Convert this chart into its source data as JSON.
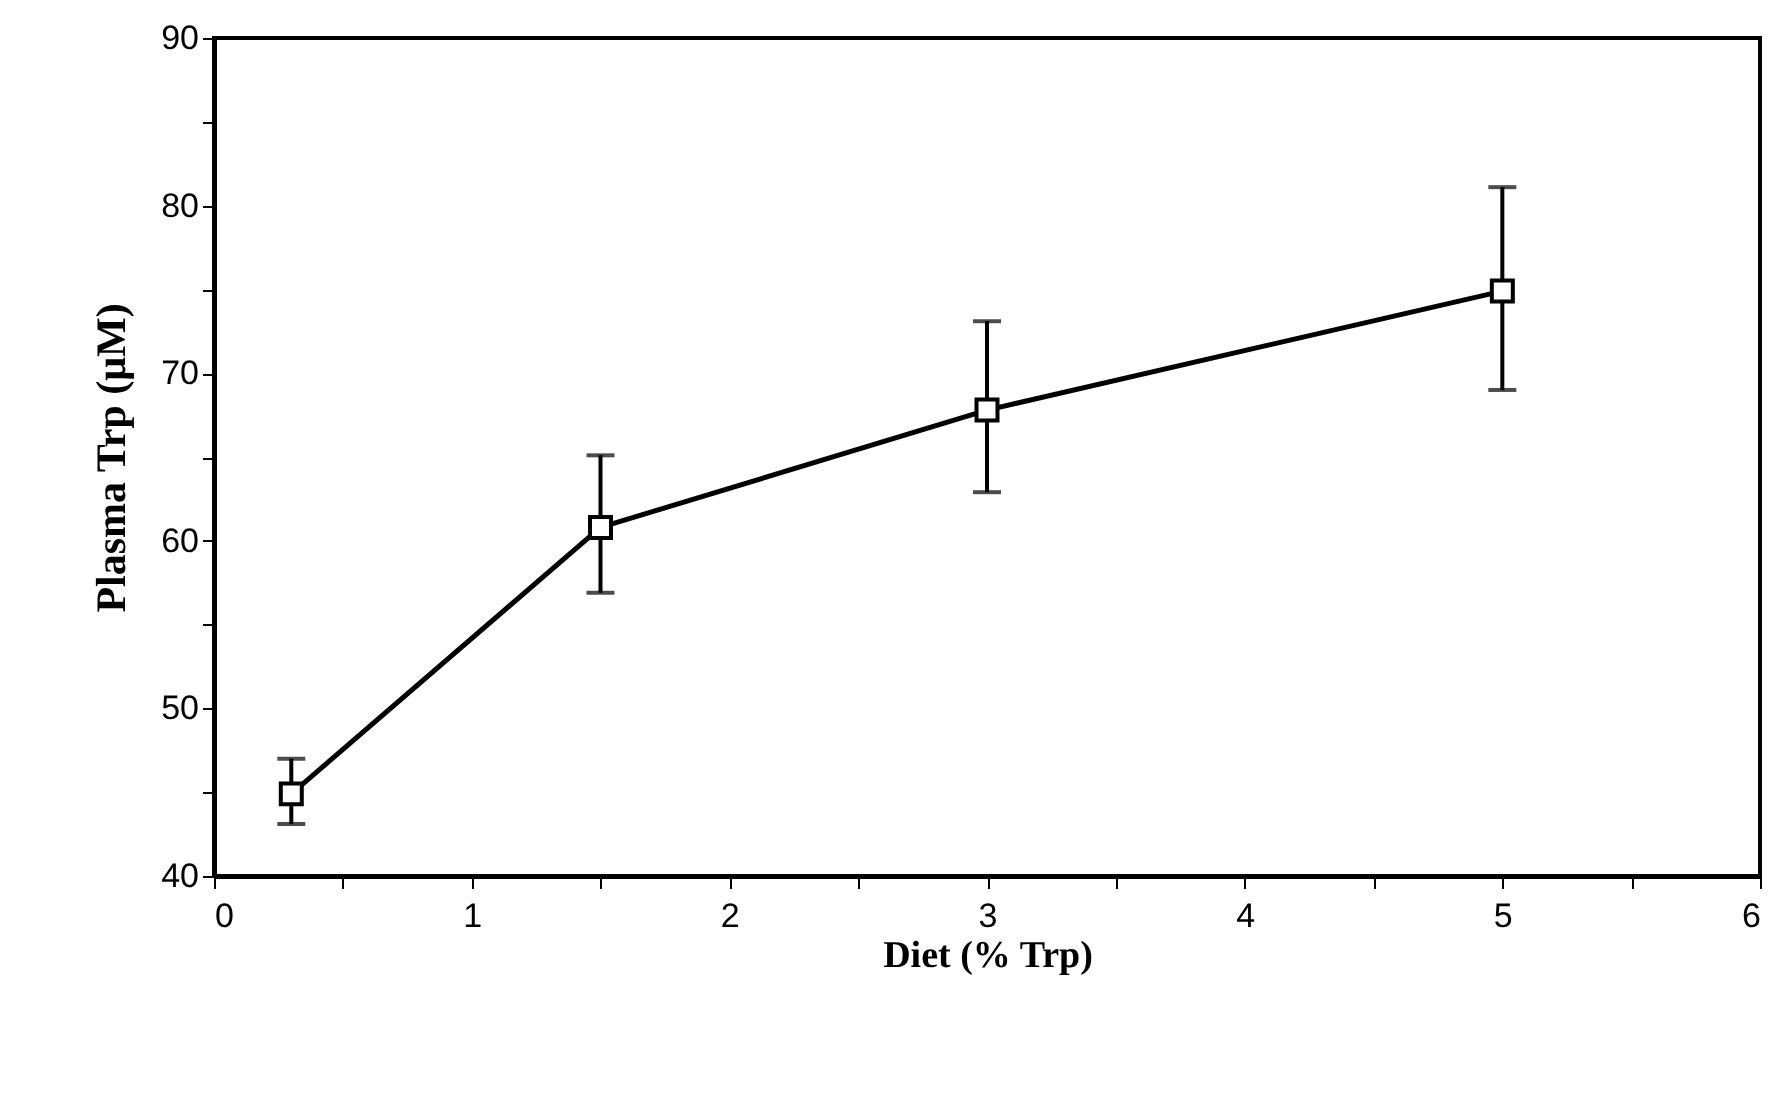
{
  "chart_data": {
    "type": "line",
    "xlabel": "Diet (% Trp)",
    "ylabel": "Plasma Trp (μM)",
    "x": [
      0.3,
      1.5,
      3,
      5
    ],
    "series": [
      {
        "color": "#000000",
        "values": [
          44.9,
          60.8,
          67.8,
          74.9
        ],
        "errors": [
          [
            43.1,
            47.0
          ],
          [
            56.9,
            65.1
          ],
          [
            62.9,
            73.1
          ],
          [
            69.0,
            81.1
          ]
        ]
      }
    ],
    "xlim": [
      0,
      6
    ],
    "ylim": [
      40,
      90
    ],
    "xticks": [
      0,
      {
        "value": 0.5,
        "label": null
      },
      1,
      {
        "value": 1.5,
        "label": null
      },
      2,
      {
        "value": 2.5,
        "label": null
      },
      3,
      {
        "value": 3.5,
        "label": null
      },
      4,
      {
        "value": 4.5,
        "label": null
      },
      5,
      {
        "value": 5.5,
        "label": null
      },
      6
    ],
    "yticks": [
      40,
      {
        "value": 45,
        "label": null
      },
      50,
      {
        "value": 55,
        "label": null
      },
      60,
      {
        "value": 65,
        "label": null
      },
      70,
      {
        "value": 75,
        "label": null
      },
      80,
      {
        "value": 85,
        "label": null
      },
      90
    ],
    "marker": "square",
    "line_style": "solid",
    "grid": false
  }
}
